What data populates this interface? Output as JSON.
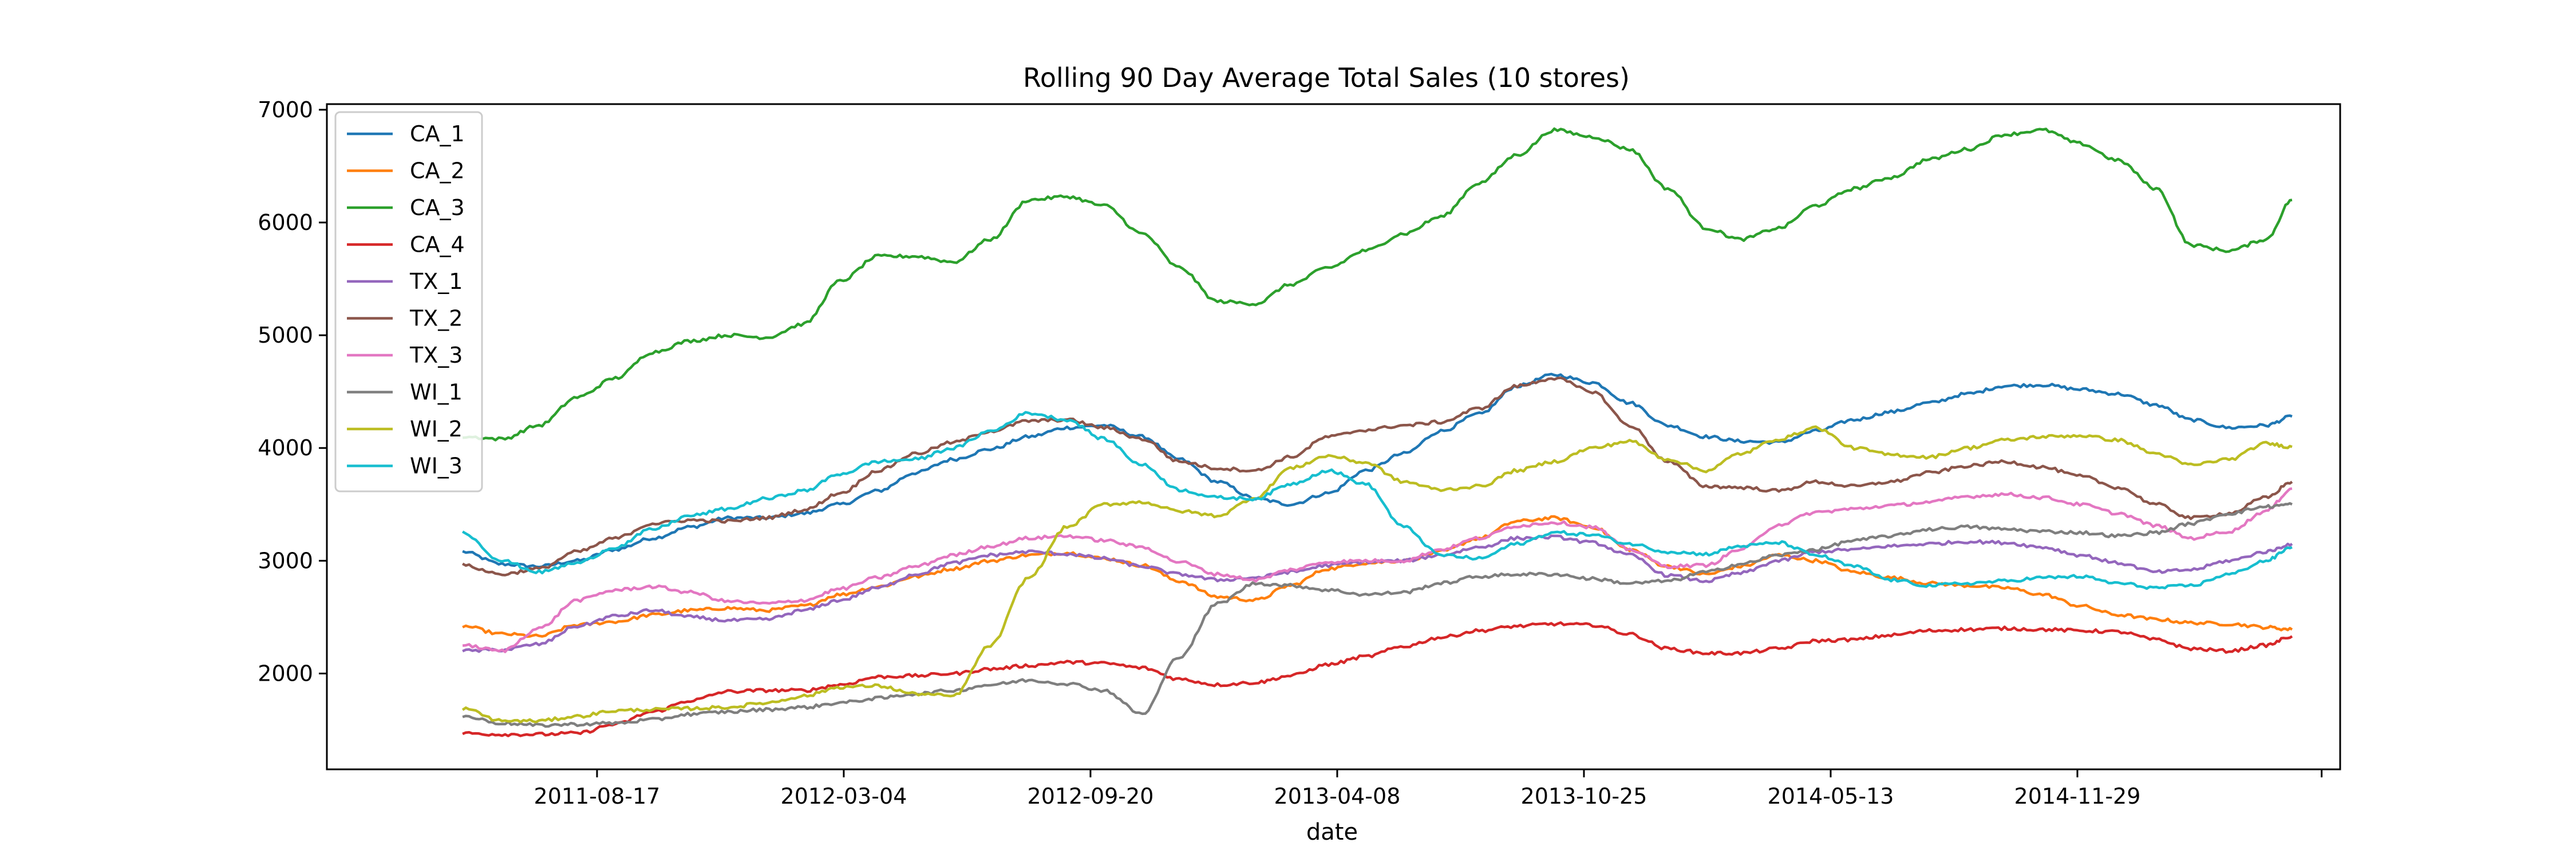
{
  "chart_data": {
    "type": "line",
    "title": "Rolling 90 Day Average Total Sales (10 stores)",
    "xlabel": "date",
    "ylabel": "",
    "x_ticks": [
      "2011-08-17",
      "2012-03-04",
      "2012-09-20",
      "2013-04-08",
      "2013-10-25",
      "2014-05-13",
      "2014-11-29"
    ],
    "y_ticks": [
      2000,
      3000,
      4000,
      5000,
      6000,
      7000
    ],
    "xlim": [
      "2011-01-10",
      "2015-06-30"
    ],
    "ylim": [
      1150,
      7050
    ],
    "grid": false,
    "legend_position": "upper-left",
    "x": [
      "2011-04-30",
      "2011-06-01",
      "2011-07-01",
      "2011-08-01",
      "2011-09-01",
      "2011-10-01",
      "2011-11-01",
      "2011-12-01",
      "2012-01-01",
      "2012-02-01",
      "2012-03-01",
      "2012-04-01",
      "2012-05-01",
      "2012-06-01",
      "2012-07-01",
      "2012-08-01",
      "2012-09-01",
      "2012-10-01",
      "2012-11-01",
      "2012-12-01",
      "2013-01-01",
      "2013-02-01",
      "2013-03-01",
      "2013-04-01",
      "2013-05-01",
      "2013-06-01",
      "2013-07-01",
      "2013-08-01",
      "2013-09-01",
      "2013-10-01",
      "2013-11-01",
      "2013-12-01",
      "2014-01-01",
      "2014-02-01",
      "2014-03-01",
      "2014-04-01",
      "2014-05-01",
      "2014-06-01",
      "2014-07-01",
      "2014-08-01",
      "2014-09-01",
      "2014-10-01",
      "2014-11-01",
      "2014-12-01",
      "2015-01-01",
      "2015-02-01",
      "2015-03-01",
      "2015-04-01",
      "2015-05-01",
      "2015-05-22"
    ],
    "series": [
      {
        "name": "CA_1",
        "color": "#1f77b4",
        "values": [
          3080,
          2970,
          2950,
          3000,
          3100,
          3200,
          3300,
          3380,
          3380,
          3420,
          3500,
          3620,
          3780,
          3900,
          3990,
          4100,
          4180,
          4200,
          4100,
          3900,
          3700,
          3550,
          3500,
          3600,
          3800,
          3950,
          4150,
          4300,
          4550,
          4650,
          4580,
          4400,
          4200,
          4100,
          4060,
          4050,
          4150,
          4250,
          4320,
          4400,
          4480,
          4550,
          4560,
          4520,
          4480,
          4380,
          4250,
          4180,
          4200,
          4280
        ]
      },
      {
        "name": "CA_2",
        "color": "#ff7f0e",
        "values": [
          2420,
          2350,
          2330,
          2430,
          2460,
          2520,
          2560,
          2580,
          2560,
          2600,
          2700,
          2770,
          2860,
          2930,
          3000,
          3050,
          3070,
          3020,
          2960,
          2820,
          2680,
          2650,
          2780,
          2930,
          2980,
          3000,
          3080,
          3200,
          3350,
          3380,
          3300,
          3100,
          2950,
          2880,
          2950,
          3050,
          3000,
          2900,
          2850,
          2800,
          2780,
          2760,
          2700,
          2600,
          2520,
          2480,
          2450,
          2440,
          2410,
          2390
        ]
      },
      {
        "name": "CA_3",
        "color": "#2ca02c",
        "values": [
          4100,
          4080,
          4200,
          4450,
          4620,
          4850,
          4950,
          5000,
          4980,
          5100,
          5480,
          5700,
          5700,
          5650,
          5850,
          6200,
          6230,
          6150,
          5900,
          5600,
          5300,
          5280,
          5450,
          5600,
          5750,
          5900,
          6050,
          6350,
          6600,
          6820,
          6760,
          6650,
          6300,
          5950,
          5850,
          5950,
          6150,
          6300,
          6400,
          6560,
          6650,
          6780,
          6820,
          6700,
          6550,
          6300,
          5800,
          5750,
          5850,
          6200
        ]
      },
      {
        "name": "CA_4",
        "color": "#d62728",
        "values": [
          1470,
          1460,
          1460,
          1470,
          1550,
          1660,
          1760,
          1840,
          1850,
          1850,
          1900,
          1970,
          1980,
          2000,
          2040,
          2070,
          2100,
          2090,
          2050,
          1950,
          1900,
          1920,
          1980,
          2080,
          2150,
          2240,
          2320,
          2380,
          2420,
          2440,
          2430,
          2350,
          2220,
          2180,
          2180,
          2220,
          2290,
          2300,
          2340,
          2380,
          2390,
          2400,
          2390,
          2380,
          2370,
          2300,
          2220,
          2200,
          2250,
          2330
        ]
      },
      {
        "name": "TX_1",
        "color": "#9467bd",
        "values": [
          2200,
          2210,
          2260,
          2420,
          2510,
          2560,
          2500,
          2470,
          2480,
          2560,
          2650,
          2760,
          2880,
          2980,
          3050,
          3080,
          3060,
          3020,
          2950,
          2880,
          2830,
          2850,
          2900,
          2960,
          2990,
          3000,
          3050,
          3120,
          3200,
          3210,
          3160,
          3050,
          2870,
          2820,
          2890,
          3000,
          3080,
          3100,
          3130,
          3150,
          3170,
          3160,
          3120,
          3050,
          2980,
          2900,
          2920,
          3000,
          3080,
          3150
        ]
      },
      {
        "name": "TX_2",
        "color": "#8c564b",
        "values": [
          2960,
          2880,
          2930,
          3080,
          3200,
          3330,
          3360,
          3350,
          3380,
          3450,
          3600,
          3800,
          3950,
          4050,
          4150,
          4240,
          4250,
          4180,
          4080,
          3880,
          3820,
          3800,
          3920,
          4100,
          4160,
          4200,
          4230,
          4350,
          4550,
          4620,
          4500,
          4200,
          3880,
          3660,
          3650,
          3620,
          3700,
          3660,
          3700,
          3780,
          3840,
          3880,
          3830,
          3750,
          3650,
          3500,
          3380,
          3420,
          3560,
          3700
        ]
      },
      {
        "name": "TX_3",
        "color": "#e377c2",
        "values": [
          2250,
          2200,
          2400,
          2650,
          2740,
          2770,
          2720,
          2640,
          2620,
          2650,
          2750,
          2850,
          2950,
          3050,
          3130,
          3200,
          3220,
          3180,
          3120,
          2990,
          2880,
          2830,
          2920,
          2990,
          3000,
          3000,
          3100,
          3200,
          3310,
          3340,
          3300,
          3100,
          2950,
          2960,
          3100,
          3320,
          3430,
          3460,
          3490,
          3520,
          3570,
          3590,
          3560,
          3500,
          3420,
          3310,
          3200,
          3260,
          3440,
          3640
        ]
      },
      {
        "name": "WI_1",
        "color": "#7f7f7f",
        "values": [
          1620,
          1560,
          1540,
          1550,
          1560,
          1590,
          1640,
          1660,
          1680,
          1700,
          1740,
          1780,
          1820,
          1850,
          1900,
          1940,
          1910,
          1850,
          1640,
          2150,
          2620,
          2800,
          2780,
          2740,
          2700,
          2720,
          2800,
          2860,
          2880,
          2880,
          2840,
          2800,
          2820,
          2900,
          2970,
          3050,
          3100,
          3180,
          3220,
          3280,
          3300,
          3280,
          3260,
          3250,
          3220,
          3250,
          3330,
          3420,
          3480,
          3500
        ]
      },
      {
        "name": "WI_2",
        "color": "#bcbd22",
        "values": [
          1690,
          1580,
          1580,
          1620,
          1670,
          1680,
          1690,
          1700,
          1740,
          1800,
          1880,
          1890,
          1820,
          1800,
          2250,
          2850,
          3300,
          3500,
          3520,
          3440,
          3400,
          3560,
          3820,
          3930,
          3870,
          3700,
          3630,
          3660,
          3800,
          3880,
          4000,
          4060,
          3900,
          3800,
          3950,
          4080,
          4180,
          4000,
          3940,
          3920,
          4000,
          4070,
          4100,
          4110,
          4070,
          3950,
          3850,
          3900,
          4040,
          4010
        ]
      },
      {
        "name": "WI_3",
        "color": "#17becf",
        "values": [
          3250,
          3000,
          2900,
          2980,
          3120,
          3280,
          3400,
          3460,
          3550,
          3620,
          3770,
          3880,
          3900,
          4000,
          4150,
          4310,
          4250,
          4080,
          3850,
          3630,
          3560,
          3550,
          3680,
          3800,
          3680,
          3300,
          3050,
          3020,
          3150,
          3250,
          3230,
          3150,
          3080,
          3060,
          3130,
          3160,
          3050,
          2950,
          2830,
          2780,
          2800,
          2820,
          2850,
          2860,
          2800,
          2760,
          2780,
          2880,
          3000,
          3120
        ]
      }
    ]
  }
}
